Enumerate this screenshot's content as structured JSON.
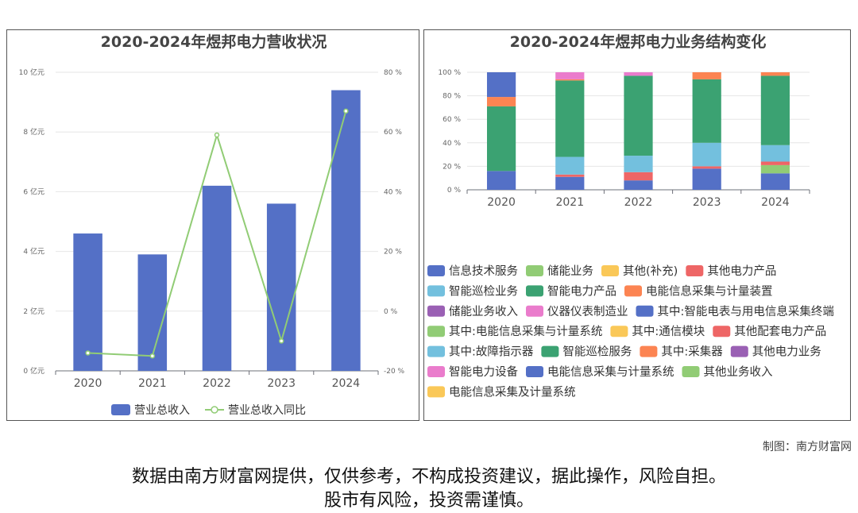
{
  "chart_data": [
    {
      "type": "bar",
      "title": "2020-2024年煜邦电力营收状况",
      "categories": [
        "2020",
        "2021",
        "2022",
        "2023",
        "2024"
      ],
      "series": [
        {
          "name": "营业总收入",
          "type": "bar",
          "axis": "left",
          "values": [
            4.6,
            3.9,
            6.2,
            5.6,
            9.4
          ],
          "color": "#5470c6"
        },
        {
          "name": "营业总收入同比",
          "type": "line",
          "axis": "right",
          "values": [
            -14,
            -15,
            59,
            -10,
            67
          ],
          "color": "#91cc75"
        }
      ],
      "y_left": {
        "ticks": [
          "0 亿元",
          "2 亿元",
          "4 亿元",
          "6 亿元",
          "8 亿元",
          "10 亿元"
        ],
        "range": [
          0,
          10
        ]
      },
      "y_right": {
        "ticks": [
          "-20 %",
          "0 %",
          "20 %",
          "40 %",
          "60 %",
          "80 %"
        ],
        "range": [
          -20,
          80
        ]
      },
      "legend": "bottom"
    },
    {
      "type": "bar",
      "stacked": true,
      "title": "2020-2024年煜邦电力业务结构变化",
      "categories": [
        "2020",
        "2021",
        "2022",
        "2023",
        "2024"
      ],
      "y_ticks": [
        "0 %",
        "20 %",
        "40 %",
        "60 %",
        "80 %",
        "100 %"
      ],
      "y_range": [
        0,
        100
      ],
      "series": [
        {
          "name": "信息技术服务",
          "color": "#5470c6",
          "values": [
            16,
            11,
            8,
            18,
            14
          ]
        },
        {
          "name": "储能业务",
          "color": "#91cc75",
          "values": [
            0,
            0,
            0,
            0,
            7
          ]
        },
        {
          "name": "其他(补充)",
          "color": "#fac858",
          "values": [
            0,
            0,
            0,
            0,
            0
          ]
        },
        {
          "name": "其他电力产品",
          "color": "#ee6666",
          "values": [
            0,
            2,
            7,
            2,
            3
          ]
        },
        {
          "name": "智能巡检业务",
          "color": "#73c0de",
          "values": [
            0,
            15,
            14,
            20,
            14
          ]
        },
        {
          "name": "智能电力产品",
          "color": "#3ba272",
          "values": [
            55,
            65,
            68,
            54,
            59
          ]
        },
        {
          "name": "电能信息采集与计量装置",
          "color": "#fc8452",
          "values": [
            8,
            1,
            0,
            6,
            3
          ]
        },
        {
          "name": "储能业务收入",
          "color": "#9a60b4",
          "values": [
            0,
            0,
            0,
            0,
            0
          ]
        },
        {
          "name": "仪器仪表制造业",
          "color": "#ea7ccc",
          "values": [
            0,
            6,
            3,
            0,
            0
          ]
        },
        {
          "name": "其中:智能电表与用电信息采集终端",
          "color": "#5470c6",
          "values": [
            21,
            0,
            0,
            0,
            0
          ]
        },
        {
          "name": "其中:电能信息采集与计量系统",
          "color": "#91cc75",
          "values": [
            0,
            0,
            0,
            0,
            0
          ]
        },
        {
          "name": "其中:通信模块",
          "color": "#fac858",
          "values": [
            0,
            0,
            0,
            0,
            0
          ]
        },
        {
          "name": "其他配套电力产品",
          "color": "#ee6666",
          "values": [
            0,
            0,
            0,
            0,
            0
          ]
        },
        {
          "name": "其中:故障指示器",
          "color": "#73c0de",
          "values": [
            0,
            0,
            0,
            0,
            0
          ]
        },
        {
          "name": "智能巡检服务",
          "color": "#3ba272",
          "values": [
            0,
            0,
            0,
            0,
            0
          ]
        },
        {
          "name": "其中:采集器",
          "color": "#fc8452",
          "values": [
            0,
            0,
            0,
            0,
            0
          ]
        },
        {
          "name": "其他电力业务",
          "color": "#9a60b4",
          "values": [
            0,
            0,
            0,
            0,
            0
          ]
        },
        {
          "name": "智能电力设备",
          "color": "#ea7ccc",
          "values": [
            0,
            0,
            0,
            0,
            0
          ]
        },
        {
          "name": "电能信息采集与计量系统",
          "color": "#5470c6",
          "values": [
            0,
            0,
            0,
            0,
            0
          ]
        },
        {
          "name": "其他业务收入",
          "color": "#91cc75",
          "values": [
            0,
            0,
            0,
            0,
            0
          ]
        },
        {
          "name": "电能信息采集及计量系统",
          "color": "#fac858",
          "values": [
            0,
            0,
            0,
            0,
            0
          ]
        }
      ],
      "legend": "bottom"
    }
  ],
  "footer": {
    "credit": "制图：南方财富网",
    "disclaimer_line1": "数据由南方财富网提供，仅供参考，不构成投资建议，据此操作，风险自担。",
    "disclaimer_line2": "股市有风险，投资需谨慎。"
  }
}
